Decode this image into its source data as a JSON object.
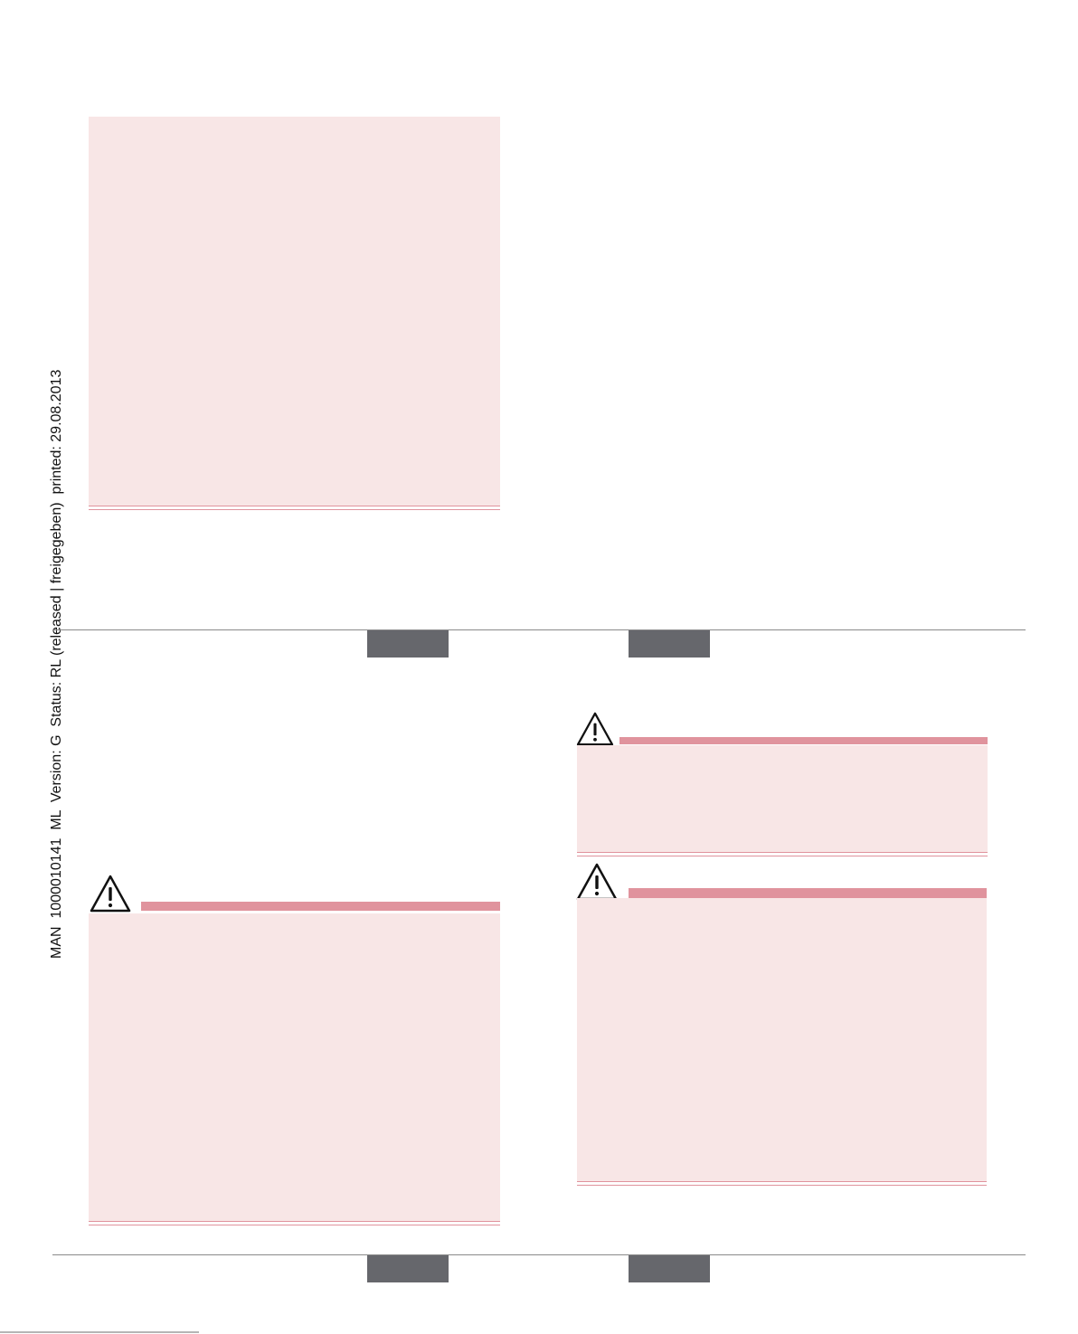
{
  "sidebar": {
    "doc_info": "MAN  1000010141  ML  Version: G  Status: RL (released | freigegeben)  printed: 29.08.2013"
  },
  "icons": {
    "warning": "warning-triangle-icon"
  },
  "colors": {
    "callout_fill": "#f8e6e6",
    "callout_accent": "#e0939d",
    "tab_fill": "#66676c"
  }
}
